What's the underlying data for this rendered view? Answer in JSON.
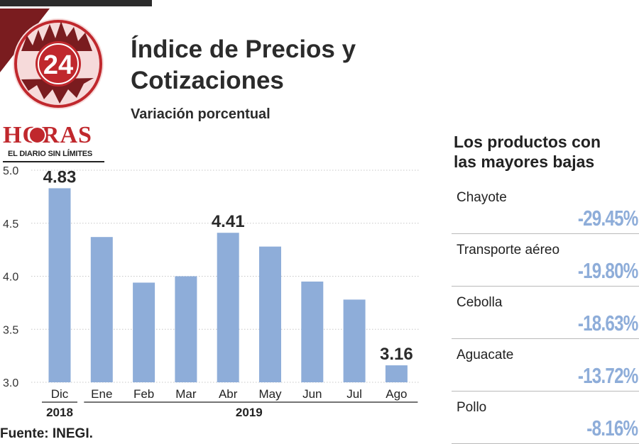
{
  "header": {
    "title_line1": "Índice de Precios y",
    "title_line2": "Cotizaciones",
    "subtitle": "Variación porcentual"
  },
  "logo": {
    "number": "24",
    "name": "HORAS",
    "tagline": "EL DIARIO SIN LÍMITES"
  },
  "colors": {
    "bar": "#8eadd9",
    "logo_red": "#c0282d",
    "text": "#222222"
  },
  "chart_data": {
    "type": "bar",
    "title": "Índice de Precios y Cotizaciones",
    "subtitle": "Variación porcentual",
    "categories": [
      "Dic",
      "Ene",
      "Feb",
      "Mar",
      "Abr",
      "May",
      "Jun",
      "Jul",
      "Ago"
    ],
    "year_groups": [
      {
        "label": "2018",
        "categories": [
          "Dic"
        ]
      },
      {
        "label": "2019",
        "categories": [
          "Ene",
          "Feb",
          "Mar",
          "Abr",
          "May",
          "Jun",
          "Jul",
          "Ago"
        ]
      }
    ],
    "values": [
      4.83,
      4.37,
      3.94,
      4.0,
      4.41,
      4.28,
      3.95,
      3.78,
      3.16
    ],
    "data_labels": [
      {
        "category": "Dic",
        "text": "4.83"
      },
      {
        "category": "Abr",
        "text": "4.41"
      },
      {
        "category": "Ago",
        "text": "3.16"
      }
    ],
    "yticks": [
      "3.0",
      "3.5",
      "4.0",
      "4.5",
      "5.0"
    ],
    "ylim": [
      3.0,
      5.0
    ],
    "xlabel": "",
    "ylabel": "",
    "grid": true
  },
  "side_panel": {
    "title_line1": "Los productos con",
    "title_line2": "las mayores bajas",
    "items": [
      {
        "name": "Chayote",
        "value": "-29.45%"
      },
      {
        "name": "Transporte aéreo",
        "value": "-19.80%"
      },
      {
        "name": "Cebolla",
        "value": "-18.63%"
      },
      {
        "name": "Aguacate",
        "value": "-13.72%"
      },
      {
        "name": "Pollo",
        "value": "-8.16%"
      }
    ]
  },
  "footer": {
    "source": "Fuente: INEGI."
  }
}
